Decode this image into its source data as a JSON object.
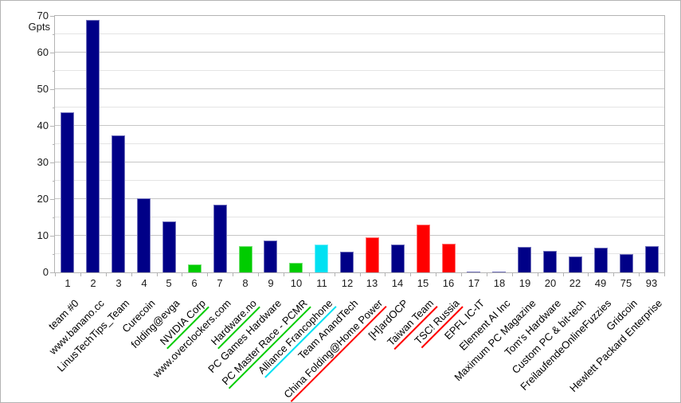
{
  "chart_data": {
    "type": "bar",
    "title": "",
    "ylabel": "Gpts",
    "xlabel": "",
    "ylim": [
      0,
      70
    ],
    "y_major_step": 10,
    "y_minor_step": 5,
    "grid": true,
    "legend": false,
    "x_rank_labels": [
      "1",
      "2",
      "3",
      "4",
      "5",
      "6",
      "7",
      "8",
      "9",
      "10",
      "11",
      "12",
      "13",
      "14",
      "15",
      "16",
      "17",
      "18",
      "19",
      "20",
      "22",
      "49",
      "75",
      "93"
    ],
    "categories": [
      "team #0",
      "www.banano.cc",
      "LinusTechTips_Team",
      "Curecoin",
      "folding@evga",
      "NVIDIA Corp",
      "www.overclockers.com",
      "Hardware.no",
      "PC Games Hardware",
      "PC Master Race - PCMR",
      "Alliance Francophone",
      "Team AnandTech",
      "China Folding@Home Power",
      "[H]ardOCP",
      "Taiwan Team",
      "TSC! Russia",
      "EPFL IC-IT",
      "Element AI Inc",
      "Maximum PC Magazine",
      "Tom's Hardware",
      "Custom PC & bit-tech",
      "FreilaufendeOnlineFuzzies",
      "Gridcoin",
      "Hewlett Packard Enterprise"
    ],
    "values": [
      43.8,
      69,
      37.4,
      20.3,
      14,
      2.2,
      18.5,
      7.1,
      8.8,
      2.7,
      7.7,
      5.7,
      9.5,
      7.5,
      13.1,
      7.8,
      0.3,
      0.3,
      6.9,
      5.9,
      4.4,
      6.8,
      5.0,
      7.2
    ],
    "palette": {
      "navy": "#000087",
      "green": "#00cc00",
      "cyan": "#00e1f2",
      "red": "#ff0000"
    },
    "bar_colors": [
      "navy",
      "navy",
      "navy",
      "navy",
      "navy",
      "green",
      "navy",
      "green",
      "navy",
      "green",
      "cyan",
      "navy",
      "red",
      "navy",
      "red",
      "red",
      "navy",
      "navy",
      "navy",
      "navy",
      "navy",
      "navy",
      "navy",
      "navy"
    ],
    "label_underlines": [
      null,
      null,
      null,
      null,
      null,
      "green",
      null,
      "green",
      null,
      "green",
      "cyan",
      null,
      "red",
      null,
      "red",
      "red",
      null,
      null,
      null,
      null,
      null,
      null,
      null,
      null
    ]
  }
}
